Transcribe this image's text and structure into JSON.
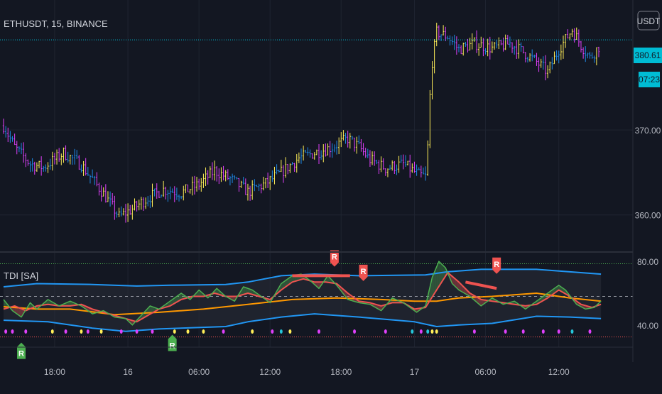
{
  "symbol_label": "ETHUSDT, 15, BINANCE",
  "currency_button": "USDT",
  "price_badge": "380.61",
  "countdown_badge": "07:23",
  "indicator_label": "TDI [SA]",
  "colors": {
    "background": "#131722",
    "grid": "#1f2430",
    "axis_text": "#b2b5be",
    "badge": "#00bcd4",
    "candle_up": "#ffee58",
    "candle_down": "#e040fb",
    "candle_neutral": "#1e88e5",
    "band": "#2196f3",
    "midline": "#ff9800",
    "rsi_line": "#4caf50",
    "signal_line": "#ef5350",
    "level_hi": "#4caf50",
    "level_lo": "#ef5350",
    "signal_r": "#ef5350",
    "signal_rg": "#4caf50"
  },
  "chart_data": [
    {
      "type": "candlestick",
      "title": "ETHUSDT, 15, BINANCE",
      "x_ticks": [
        "18:00",
        "16",
        "06:00",
        "12:00",
        "18:00",
        "17",
        "06:00",
        "12:00"
      ],
      "y_ticks": [
        370.0,
        360.0
      ],
      "ylim": [
        355.8,
        385.3
      ],
      "current_price": 380.61,
      "close_path": [
        [
          0,
          370.5
        ],
        [
          5,
          368
        ],
        [
          12,
          366
        ],
        [
          18,
          365.6
        ],
        [
          27,
          367.3
        ],
        [
          35,
          365.9
        ],
        [
          45,
          362.5
        ],
        [
          52,
          359.8
        ],
        [
          58,
          360.7
        ],
        [
          65,
          362
        ],
        [
          72,
          363
        ],
        [
          80,
          362.6
        ],
        [
          88,
          363.6
        ],
        [
          95,
          365.2
        ],
        [
          103,
          364.1
        ],
        [
          110,
          362.7
        ],
        [
          118,
          363.7
        ],
        [
          125,
          365
        ],
        [
          133,
          366.7
        ],
        [
          140,
          367.3
        ],
        [
          148,
          368
        ],
        [
          155,
          369
        ],
        [
          160,
          368
        ],
        [
          165,
          366.5
        ],
        [
          172,
          365.5
        ],
        [
          180,
          366
        ],
        [
          187,
          364.7
        ],
        [
          190,
          364.5
        ],
        [
          191,
          368
        ],
        [
          192,
          374
        ],
        [
          193,
          378
        ],
        [
          195,
          381.5
        ],
        [
          200,
          381
        ],
        [
          205,
          379.5
        ],
        [
          212,
          380.2
        ],
        [
          220,
          379.6
        ],
        [
          228,
          380.2
        ],
        [
          235,
          379
        ],
        [
          240,
          378
        ],
        [
          245,
          376.8
        ],
        [
          250,
          379.5
        ],
        [
          256,
          381.8
        ],
        [
          260,
          380
        ],
        [
          264,
          378.5
        ],
        [
          268,
          379.8
        ]
      ],
      "bar_count": 269
    },
    {
      "type": "line",
      "title": "TDI [SA]",
      "y_ticks": [
        80.0,
        40.0
      ],
      "ylim": [
        26.5,
        85
      ],
      "levels": [
        {
          "name": "upper",
          "value": 78.5
        },
        {
          "name": "mid",
          "value": 58
        },
        {
          "name": "lower",
          "value": 32.5
        }
      ],
      "series": [
        {
          "name": "Upper band",
          "points": [
            [
              0,
              64
            ],
            [
              15,
              66
            ],
            [
              40,
              65.5
            ],
            [
              60,
              64.5
            ],
            [
              75,
              65
            ],
            [
              100,
              65.5
            ],
            [
              110,
              67
            ],
            [
              125,
              71
            ],
            [
              140,
              72
            ],
            [
              160,
              71
            ],
            [
              190,
              71.5
            ],
            [
              200,
              73.5
            ],
            [
              215,
              75
            ],
            [
              240,
              75
            ],
            [
              269,
              72
            ]
          ]
        },
        {
          "name": "Lower band",
          "points": [
            [
              0,
              43
            ],
            [
              20,
              42
            ],
            [
              40,
              38
            ],
            [
              55,
              36
            ],
            [
              70,
              37.5
            ],
            [
              100,
              39
            ],
            [
              110,
              42
            ],
            [
              125,
              45
            ],
            [
              140,
              47
            ],
            [
              160,
              45
            ],
            [
              185,
              42
            ],
            [
              195,
              39
            ],
            [
              205,
              40
            ],
            [
              220,
              41
            ],
            [
              240,
              45.5
            ],
            [
              255,
              45
            ],
            [
              269,
              44
            ]
          ]
        },
        {
          "name": "Midline",
          "points": [
            [
              0,
              51.5
            ],
            [
              15,
              50
            ],
            [
              30,
              50
            ],
            [
              50,
              46.5
            ],
            [
              70,
              48
            ],
            [
              90,
              50
            ],
            [
              110,
              53
            ],
            [
              130,
              56
            ],
            [
              150,
              57
            ],
            [
              170,
              56
            ],
            [
              185,
              55
            ],
            [
              195,
              55
            ],
            [
              205,
              57
            ],
            [
              220,
              58
            ],
            [
              240,
              60
            ],
            [
              255,
              57
            ],
            [
              269,
              55
            ]
          ]
        },
        {
          "name": "RSI price line",
          "points": [
            [
              0,
              56
            ],
            [
              4,
              49
            ],
            [
              8,
              45
            ],
            [
              12,
              54
            ],
            [
              15,
              50
            ],
            [
              20,
              56
            ],
            [
              25,
              52
            ],
            [
              30,
              55
            ],
            [
              35,
              52
            ],
            [
              40,
              47
            ],
            [
              45,
              49
            ],
            [
              50,
              45
            ],
            [
              55,
              44
            ],
            [
              58,
              40
            ],
            [
              62,
              46
            ],
            [
              66,
              52
            ],
            [
              70,
              50
            ],
            [
              75,
              55
            ],
            [
              80,
              60
            ],
            [
              84,
              56
            ],
            [
              88,
              62
            ],
            [
              92,
              57
            ],
            [
              96,
              63
            ],
            [
              100,
              58
            ],
            [
              104,
              55
            ],
            [
              108,
              64
            ],
            [
              112,
              62
            ],
            [
              117,
              57
            ],
            [
              120,
              54
            ],
            [
              125,
              66
            ],
            [
              130,
              71
            ],
            [
              134,
              72
            ],
            [
              138,
              68
            ],
            [
              142,
              63
            ],
            [
              146,
              71
            ],
            [
              150,
              65
            ],
            [
              155,
              56
            ],
            [
              160,
              54
            ],
            [
              165,
              53
            ],
            [
              170,
              49
            ],
            [
              175,
              57
            ],
            [
              180,
              54
            ],
            [
              183,
              51
            ],
            [
              186,
              48
            ],
            [
              190,
              52
            ],
            [
              193,
              70
            ],
            [
              196,
              80
            ],
            [
              199,
              76
            ],
            [
              202,
              66
            ],
            [
              205,
              62
            ],
            [
              210,
              58
            ],
            [
              215,
              52
            ],
            [
              220,
              57
            ],
            [
              225,
              53
            ],
            [
              230,
              55
            ],
            [
              235,
              50
            ],
            [
              240,
              55
            ],
            [
              245,
              60
            ],
            [
              250,
              65
            ],
            [
              253,
              62
            ],
            [
              258,
              53
            ],
            [
              262,
              50
            ],
            [
              266,
              51
            ],
            [
              269,
              55
            ]
          ]
        },
        {
          "name": "Trade signal line",
          "points": [
            [
              0,
              50
            ],
            [
              5,
              52
            ],
            [
              10,
              49
            ],
            [
              15,
              52
            ],
            [
              20,
              53
            ],
            [
              25,
              52
            ],
            [
              30,
              52
            ],
            [
              35,
              53
            ],
            [
              40,
              50
            ],
            [
              45,
              48
            ],
            [
              50,
              46
            ],
            [
              55,
              44
            ],
            [
              60,
              42
            ],
            [
              65,
              46
            ],
            [
              70,
              50
            ],
            [
              75,
              52
            ],
            [
              80,
              56
            ],
            [
              85,
              58
            ],
            [
              90,
              58
            ],
            [
              95,
              60
            ],
            [
              100,
              58
            ],
            [
              105,
              58
            ],
            [
              110,
              60
            ],
            [
              115,
              58
            ],
            [
              120,
              56
            ],
            [
              125,
              62
            ],
            [
              130,
              67
            ],
            [
              135,
              69
            ],
            [
              140,
              67
            ],
            [
              145,
              67
            ],
            [
              150,
              66
            ],
            [
              155,
              60
            ],
            [
              160,
              55
            ],
            [
              165,
              54
            ],
            [
              170,
              52
            ],
            [
              175,
              54
            ],
            [
              180,
              54
            ],
            [
              185,
              50
            ],
            [
              190,
              51
            ],
            [
              195,
              62
            ],
            [
              200,
              73
            ],
            [
              205,
              67
            ],
            [
              210,
              60
            ],
            [
              215,
              56
            ],
            [
              220,
              55
            ],
            [
              225,
              54
            ],
            [
              230,
              53
            ],
            [
              235,
              52
            ],
            [
              240,
              53
            ],
            [
              245,
              57
            ],
            [
              250,
              62
            ],
            [
              255,
              58
            ],
            [
              260,
              53
            ],
            [
              265,
              51
            ],
            [
              269,
              53
            ]
          ]
        }
      ],
      "signals": [
        {
          "label": "R",
          "color": "red",
          "x": 149,
          "y": 78
        },
        {
          "label": "R",
          "color": "red",
          "x": 162,
          "y": 69
        },
        {
          "label": "R",
          "color": "red",
          "x": 222,
          "y": 73.5
        },
        {
          "label": "R",
          "color": "green",
          "x": 8,
          "y": 28
        },
        {
          "label": "R",
          "color": "green",
          "x": 76,
          "y": 33
        }
      ],
      "divergence_lines": [
        {
          "from": [
            130,
            71
          ],
          "to": [
            156,
            71
          ]
        },
        {
          "from": [
            208,
            67
          ],
          "to": [
            222,
            63
          ]
        }
      ],
      "dots": [
        {
          "x": 1,
          "c": "magenta"
        },
        {
          "x": 4,
          "c": "magenta"
        },
        {
          "x": 10,
          "c": "magenta"
        },
        {
          "x": 22,
          "c": "yellow"
        },
        {
          "x": 28,
          "c": "magenta"
        },
        {
          "x": 35,
          "c": "yellow"
        },
        {
          "x": 38,
          "c": "magenta"
        },
        {
          "x": 44,
          "c": "yellow"
        },
        {
          "x": 53,
          "c": "magenta"
        },
        {
          "x": 60,
          "c": "magenta"
        },
        {
          "x": 67,
          "c": "magenta"
        },
        {
          "x": 77,
          "c": "yellow"
        },
        {
          "x": 83,
          "c": "yellow"
        },
        {
          "x": 90,
          "c": "yellow"
        },
        {
          "x": 99,
          "c": "magenta"
        },
        {
          "x": 112,
          "c": "yellow"
        },
        {
          "x": 121,
          "c": "magenta"
        },
        {
          "x": 125,
          "c": "cyan"
        },
        {
          "x": 129,
          "c": "yellow"
        },
        {
          "x": 142,
          "c": "magenta"
        },
        {
          "x": 158,
          "c": "magenta"
        },
        {
          "x": 172,
          "c": "magenta"
        },
        {
          "x": 184,
          "c": "cyan"
        },
        {
          "x": 188,
          "c": "magenta"
        },
        {
          "x": 191,
          "c": "cyan"
        },
        {
          "x": 193,
          "c": "yellow"
        },
        {
          "x": 195,
          "c": "yellow"
        },
        {
          "x": 212,
          "c": "magenta"
        },
        {
          "x": 226,
          "c": "magenta"
        },
        {
          "x": 234,
          "c": "magenta"
        },
        {
          "x": 243,
          "c": "magenta"
        },
        {
          "x": 250,
          "c": "magenta"
        },
        {
          "x": 256,
          "c": "cyan"
        },
        {
          "x": 264,
          "c": "magenta"
        }
      ]
    }
  ]
}
